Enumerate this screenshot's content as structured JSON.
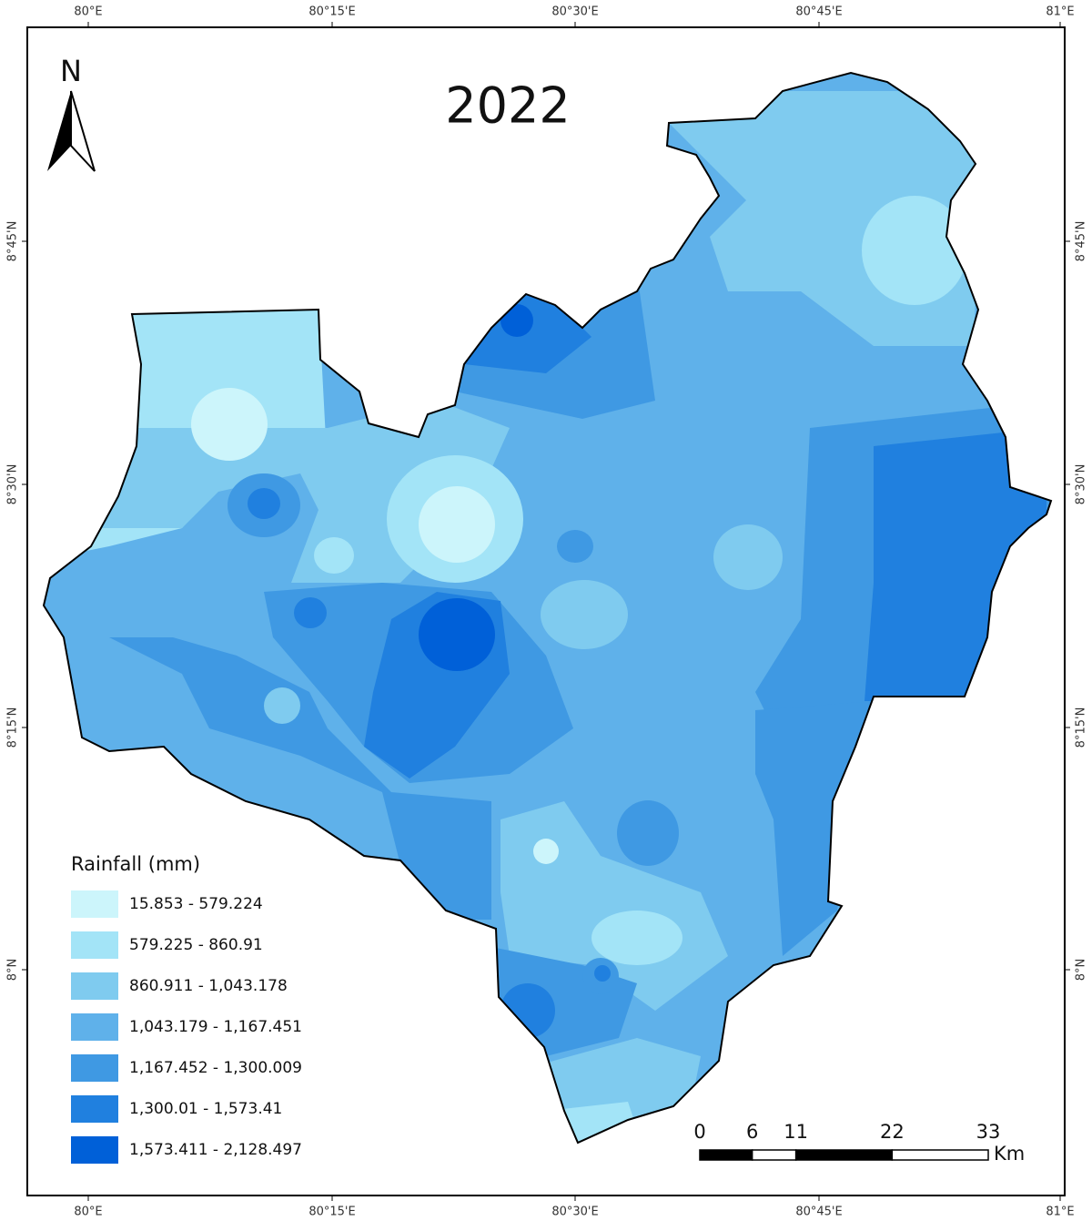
{
  "title": "2022",
  "north": "N",
  "graticule": {
    "top": [
      "80°E",
      "80°15'E",
      "80°30'E",
      "80°45'E",
      "81°E"
    ],
    "bottom": [
      "80°E",
      "80°15'E",
      "80°30'E",
      "80°45'E",
      "81°E"
    ],
    "left": [
      "8°45'N",
      "8°30'N",
      "8°15'N",
      "8°N"
    ],
    "right": [
      "8°45'N",
      "8°30'N",
      "8°15'N",
      "8°N"
    ]
  },
  "legend": {
    "title": "Rainfall (mm)",
    "items": [
      {
        "label": "15.853 - 579.224",
        "color": "#ccf5fb"
      },
      {
        "label": "579.225 - 860.91",
        "color": "#a3e4f7"
      },
      {
        "label": "860.911 - 1,043.178",
        "color": "#7fcbef"
      },
      {
        "label": "1,043.179 - 1,167.451",
        "color": "#5fb1ea"
      },
      {
        "label": "1,167.452 - 1,300.009",
        "color": "#3f99e3"
      },
      {
        "label": "1,300.01 - 1,573.41",
        "color": "#2080df"
      },
      {
        "label": "1,573.411 - 2,128.497",
        "color": "#0060d8"
      }
    ]
  },
  "scale_bar": {
    "ticks": [
      0,
      6,
      11,
      22,
      33
    ],
    "unit": "Km"
  }
}
